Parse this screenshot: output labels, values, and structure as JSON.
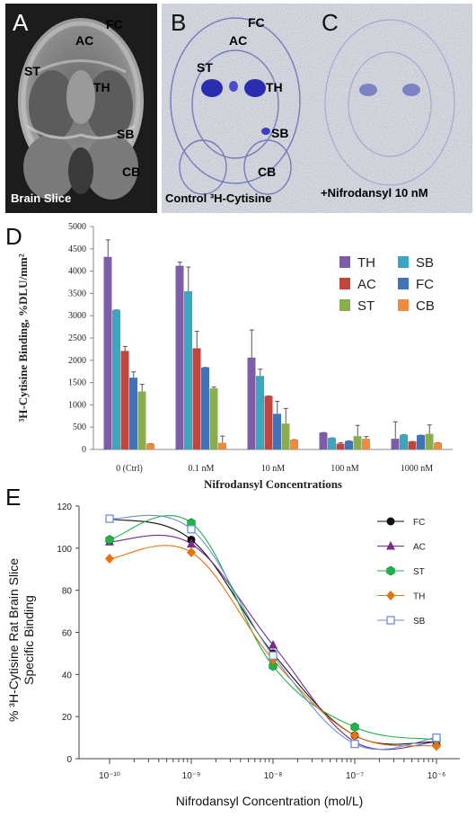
{
  "panels": {
    "a": {
      "letter": "A",
      "caption": "Brain Slice"
    },
    "b": {
      "letter": "B",
      "caption": "Control ³H-Cytisine"
    },
    "c": {
      "letter": "C",
      "caption": "+Nifrodansyl 10 nM"
    },
    "d": {
      "letter": "D"
    },
    "e": {
      "letter": "E"
    }
  },
  "region_labels": [
    "FC",
    "AC",
    "ST",
    "TH",
    "SB",
    "CB"
  ],
  "colors": {
    "TH": "#7b5ea7",
    "SB": "#3aa6c0",
    "AC": "#c0463d",
    "FC": "#4273b6",
    "ST": "#8cae4a",
    "CB": "#f08a3e"
  },
  "chart_data": [
    {
      "type": "bar",
      "categories": [
        "0 (Ctrl)",
        "0.1 nM",
        "10 nM",
        "100 nM",
        "1000 nM"
      ],
      "xlabel": "Nifrodansyl Concentrations",
      "ylabel": "³H-Cytisine Binding, %DLU/mm²",
      "ylim": [
        0,
        5000
      ],
      "yticks": [
        0,
        500,
        1000,
        1500,
        2000,
        2500,
        3000,
        3500,
        4000,
        4500,
        5000
      ],
      "grid": false,
      "legend_position": "top-right",
      "legend_order": [
        "TH",
        "SB",
        "AC",
        "FC",
        "ST",
        "CB"
      ],
      "series": [
        {
          "name": "TH",
          "values": [
            4320,
            4120,
            2060,
            380,
            240
          ],
          "errors": [
            380,
            80,
            620,
            0,
            380
          ]
        },
        {
          "name": "SB",
          "values": [
            3130,
            3550,
            1650,
            260,
            330
          ],
          "errors": [
            0,
            540,
            150,
            0,
            0
          ]
        },
        {
          "name": "AC",
          "values": [
            2210,
            2270,
            1200,
            130,
            180
          ],
          "errors": [
            100,
            380,
            0,
            20,
            0
          ]
        },
        {
          "name": "FC",
          "values": [
            1610,
            1840,
            800,
            190,
            320
          ],
          "errors": [
            130,
            0,
            280,
            0,
            0
          ]
        },
        {
          "name": "ST",
          "values": [
            1300,
            1370,
            580,
            300,
            350
          ],
          "errors": [
            160,
            30,
            340,
            240,
            200
          ]
        },
        {
          "name": "CB",
          "values": [
            130,
            150,
            220,
            240,
            150
          ],
          "errors": [
            0,
            150,
            0,
            50,
            0
          ]
        }
      ]
    },
    {
      "type": "line",
      "x": [
        1e-10,
        1e-09,
        1e-08,
        1e-07,
        1e-06
      ],
      "xscale": "log",
      "xticklabels": [
        "10⁻¹⁰",
        "10⁻⁹",
        "10⁻⁸",
        "10⁻⁷",
        "10⁻⁶"
      ],
      "xlabel": "Nifrodansyl Concentration (mol/L)",
      "ylabel": "% ³H-Cytisine Rat Brain Slice Specific Binding",
      "ylim": [
        0,
        120
      ],
      "yticks": [
        0,
        20,
        40,
        60,
        80,
        100,
        120
      ],
      "grid": false,
      "legend_position": "right",
      "series": [
        {
          "name": "FC",
          "values": [
            114,
            104,
            50,
            11,
            8
          ],
          "color": "#111111",
          "marker": "circle-filled"
        },
        {
          "name": "AC",
          "values": [
            103,
            102,
            54,
            8,
            8
          ],
          "color": "#7a2a8c",
          "marker": "triangle"
        },
        {
          "name": "ST",
          "values": [
            104,
            112,
            44,
            15,
            9
          ],
          "color": "#1fb34a",
          "marker": "hexagon"
        },
        {
          "name": "TH",
          "values": [
            95,
            98,
            47,
            11,
            6
          ],
          "color": "#e8720c",
          "marker": "diamond"
        },
        {
          "name": "SB",
          "values": [
            114,
            109,
            49,
            7,
            10
          ],
          "color": "#6d8fd6",
          "marker": "square-open"
        }
      ]
    }
  ]
}
